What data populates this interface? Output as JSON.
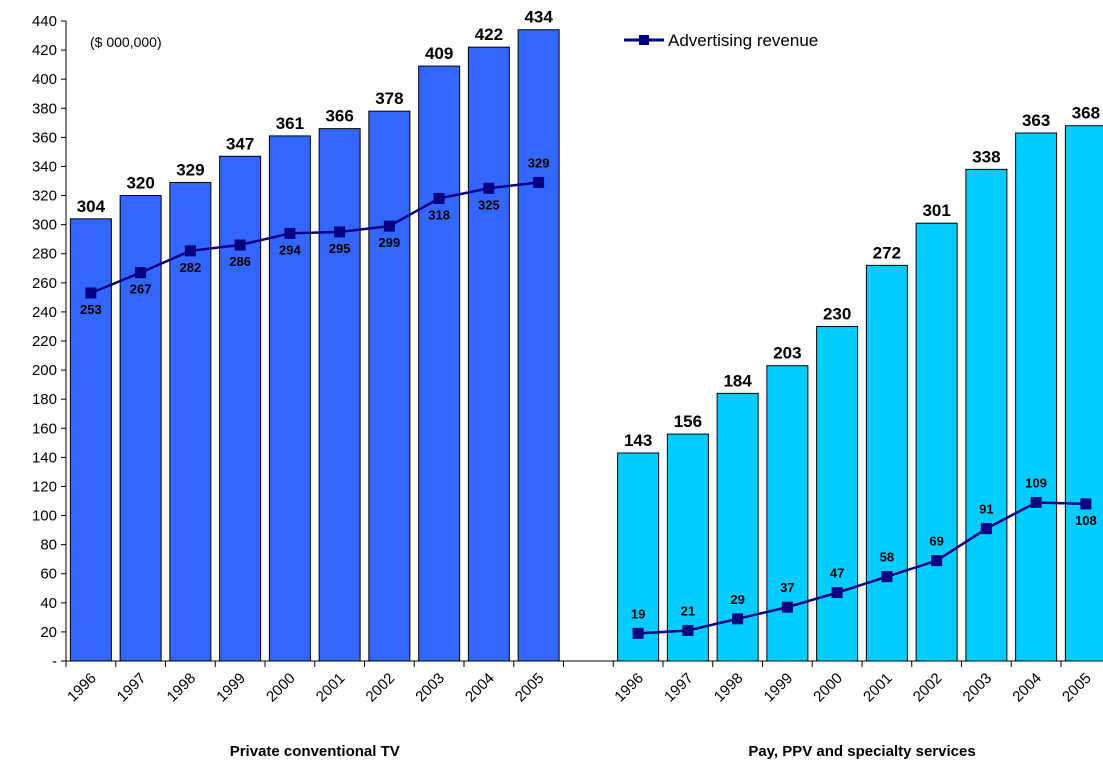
{
  "chart_data": {
    "type": "bar",
    "unit_note": "($ 000,000)",
    "ylim": [
      0,
      440
    ],
    "y_ticks": [
      {
        "value": 0,
        "label": "-"
      },
      {
        "value": 20,
        "label": "20"
      },
      {
        "value": 40,
        "label": "40"
      },
      {
        "value": 60,
        "label": "60"
      },
      {
        "value": 80,
        "label": "80"
      },
      {
        "value": 100,
        "label": "100"
      },
      {
        "value": 120,
        "label": "120"
      },
      {
        "value": 140,
        "label": "140"
      },
      {
        "value": 160,
        "label": "160"
      },
      {
        "value": 180,
        "label": "180"
      },
      {
        "value": 200,
        "label": "200"
      },
      {
        "value": 220,
        "label": "220"
      },
      {
        "value": 240,
        "label": "240"
      },
      {
        "value": 260,
        "label": "260"
      },
      {
        "value": 280,
        "label": "280"
      },
      {
        "value": 300,
        "label": "300"
      },
      {
        "value": 320,
        "label": "320"
      },
      {
        "value": 340,
        "label": "340"
      },
      {
        "value": 360,
        "label": "360"
      },
      {
        "value": 380,
        "label": "380"
      },
      {
        "value": 400,
        "label": "400"
      },
      {
        "value": 420,
        "label": "420"
      },
      {
        "value": 440,
        "label": "440"
      }
    ],
    "legend": {
      "position": "top-center",
      "line_series": "Advertising revenue"
    },
    "groups": [
      {
        "label": "Private conventional TV",
        "bar_color": "#3366FF",
        "categories": [
          "1996",
          "1997",
          "1998",
          "1999",
          "2000",
          "2001",
          "2002",
          "2003",
          "2004",
          "2005"
        ],
        "bar_values": [
          304,
          320,
          329,
          347,
          361,
          366,
          378,
          409,
          422,
          434
        ],
        "line_values": [
          253,
          267,
          282,
          286,
          294,
          295,
          299,
          318,
          325,
          329
        ]
      },
      {
        "label": "Pay, PPV and specialty services",
        "bar_color": "#00CCFF",
        "categories": [
          "1996",
          "1997",
          "1998",
          "1999",
          "2000",
          "2001",
          "2002",
          "2003",
          "2004",
          "2005"
        ],
        "bar_values": [
          143,
          156,
          184,
          203,
          230,
          272,
          301,
          338,
          363,
          368
        ],
        "line_values": [
          19,
          21,
          29,
          37,
          47,
          58,
          69,
          91,
          109,
          108
        ]
      }
    ],
    "line_color": "#000080",
    "grid": false
  }
}
